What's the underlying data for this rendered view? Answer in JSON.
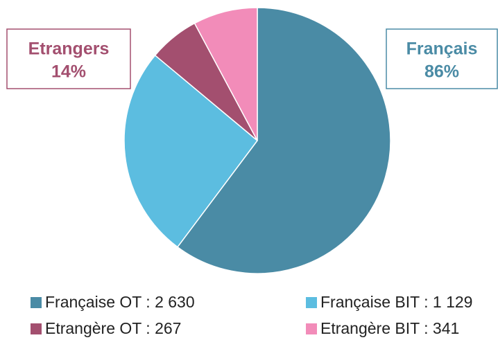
{
  "chart_data": {
    "type": "pie",
    "categories": [
      "Française OT : 2 630",
      "Française BIT : 1 129",
      "Etrangère OT : 267",
      "Etrangère BIT : 341"
    ],
    "values": [
      2630,
      1129,
      267,
      341
    ],
    "colors": [
      "#4a8ba5",
      "#5cbde0",
      "#a34f6f",
      "#f28cb9"
    ],
    "start_angle": 0,
    "direction": "clockwise",
    "annotations": [
      {
        "text": "Etrangers",
        "value": 14,
        "value_label": "14%",
        "color": "#a34f6f"
      },
      {
        "text": "Français",
        "value": 86,
        "value_label": "86%",
        "color": "#4a8ba5"
      }
    ]
  }
}
